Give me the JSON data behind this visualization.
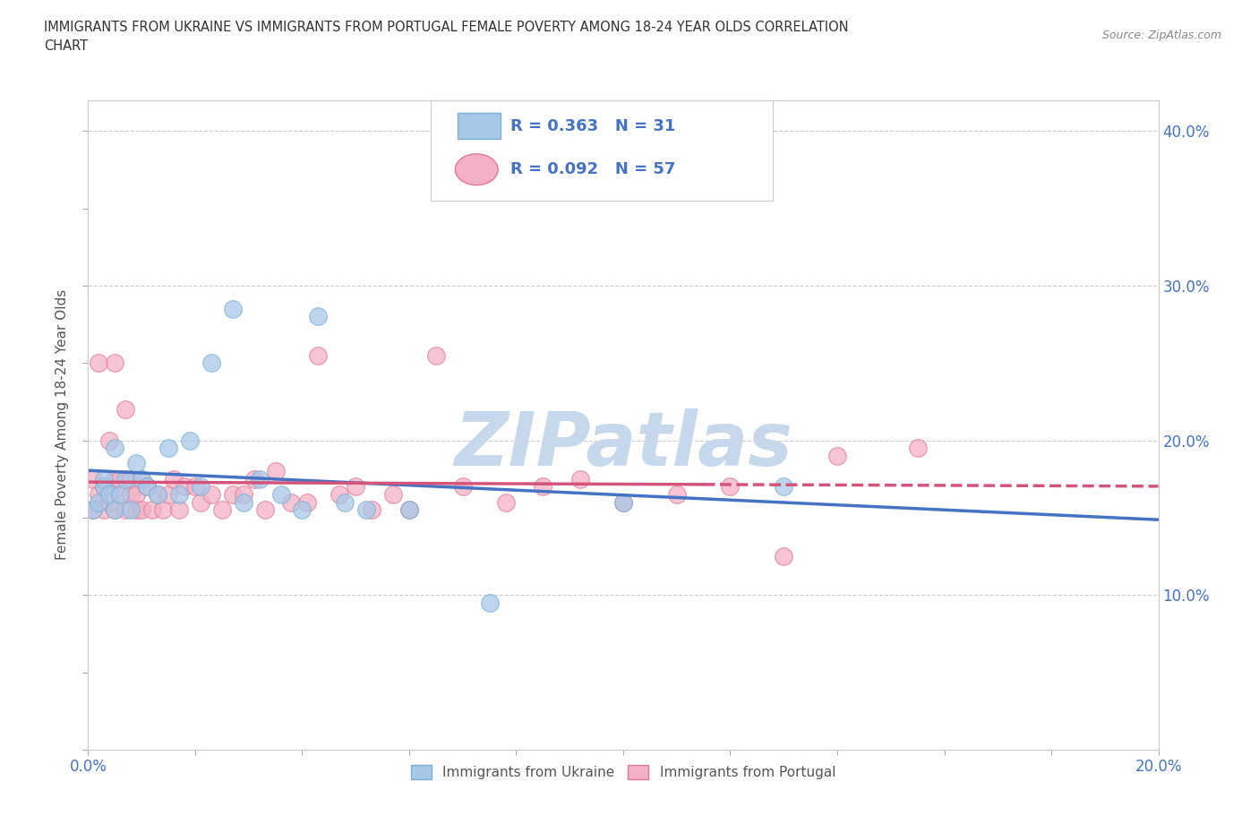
{
  "title_line1": "IMMIGRANTS FROM UKRAINE VS IMMIGRANTS FROM PORTUGAL FEMALE POVERTY AMONG 18-24 YEAR OLDS CORRELATION",
  "title_line2": "CHART",
  "source": "Source: ZipAtlas.com",
  "ylabel": "Female Poverty Among 18-24 Year Olds",
  "xlim": [
    0.0,
    0.2
  ],
  "ylim": [
    0.0,
    0.42
  ],
  "ukraine_color": "#a8c8e8",
  "ukraine_edge": "#7ab0d4",
  "portugal_color": "#f4b0c4",
  "portugal_edge": "#e07898",
  "line_ukraine": "#4472c4",
  "line_portugal": "#d4547a",
  "R_ukraine": 0.363,
  "N_ukraine": 31,
  "R_portugal": 0.092,
  "N_portugal": 57,
  "background_color": "#ffffff",
  "watermark": "ZIPatlas",
  "watermark_color": "#c8d8ec",
  "ukraine_x": [
    0.001,
    0.002,
    0.003,
    0.003,
    0.004,
    0.005,
    0.005,
    0.006,
    0.007,
    0.008,
    0.009,
    0.01,
    0.011,
    0.013,
    0.015,
    0.017,
    0.019,
    0.021,
    0.023,
    0.027,
    0.029,
    0.032,
    0.036,
    0.04,
    0.043,
    0.048,
    0.052,
    0.06,
    0.075,
    0.1,
    0.13
  ],
  "ukraine_y": [
    0.155,
    0.16,
    0.17,
    0.175,
    0.165,
    0.155,
    0.195,
    0.165,
    0.175,
    0.155,
    0.185,
    0.175,
    0.17,
    0.165,
    0.195,
    0.165,
    0.2,
    0.17,
    0.25,
    0.285,
    0.16,
    0.175,
    0.165,
    0.155,
    0.28,
    0.16,
    0.155,
    0.155,
    0.095,
    0.16,
    0.17
  ],
  "portugal_x": [
    0.001,
    0.001,
    0.002,
    0.002,
    0.003,
    0.003,
    0.004,
    0.004,
    0.005,
    0.005,
    0.005,
    0.006,
    0.006,
    0.007,
    0.007,
    0.008,
    0.008,
    0.009,
    0.009,
    0.01,
    0.01,
    0.011,
    0.012,
    0.013,
    0.014,
    0.015,
    0.016,
    0.017,
    0.018,
    0.02,
    0.021,
    0.023,
    0.025,
    0.027,
    0.029,
    0.031,
    0.033,
    0.035,
    0.038,
    0.041,
    0.043,
    0.047,
    0.05,
    0.053,
    0.057,
    0.06,
    0.065,
    0.07,
    0.078,
    0.085,
    0.092,
    0.1,
    0.11,
    0.12,
    0.13,
    0.14,
    0.155
  ],
  "portugal_y": [
    0.155,
    0.175,
    0.165,
    0.25,
    0.155,
    0.17,
    0.16,
    0.2,
    0.155,
    0.175,
    0.25,
    0.165,
    0.175,
    0.155,
    0.22,
    0.165,
    0.175,
    0.155,
    0.165,
    0.155,
    0.175,
    0.17,
    0.155,
    0.165,
    0.155,
    0.165,
    0.175,
    0.155,
    0.17,
    0.17,
    0.16,
    0.165,
    0.155,
    0.165,
    0.165,
    0.175,
    0.155,
    0.18,
    0.16,
    0.16,
    0.255,
    0.165,
    0.17,
    0.155,
    0.165,
    0.155,
    0.255,
    0.17,
    0.16,
    0.17,
    0.175,
    0.16,
    0.165,
    0.17,
    0.125,
    0.19,
    0.195
  ],
  "portugal_line_cutoff": 0.115,
  "legend_ukraine": "Immigrants from Ukraine",
  "legend_portugal": "Immigrants from Portugal"
}
